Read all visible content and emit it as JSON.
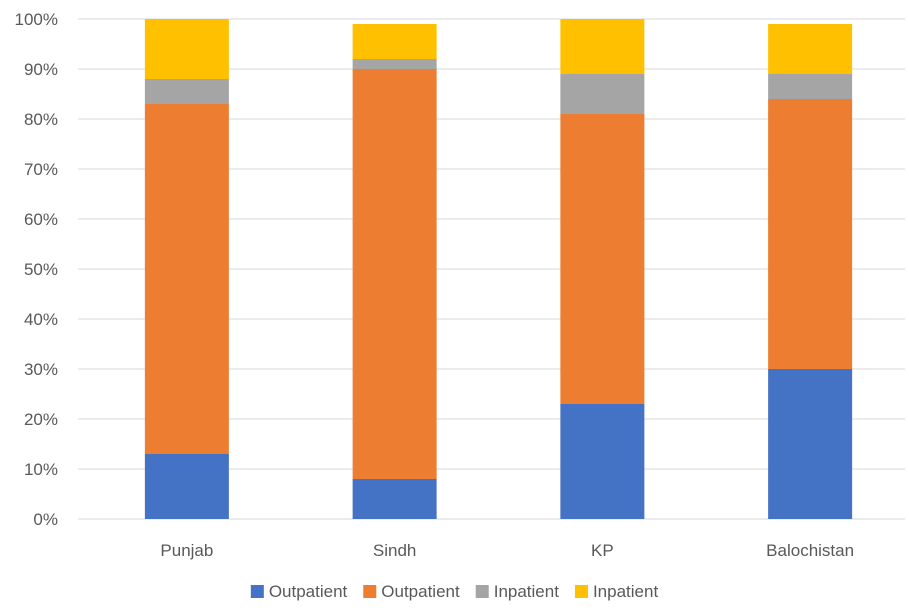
{
  "chart_data": {
    "type": "bar",
    "stacked": true,
    "categories": [
      "Punjab",
      "Sindh",
      "KP",
      "Balochistan"
    ],
    "series": [
      {
        "name": "Outpatient",
        "color": "#4472C4",
        "values": [
          13,
          8,
          23,
          30
        ]
      },
      {
        "name": "Outpatient",
        "color": "#ED7D31",
        "values": [
          70,
          82,
          58,
          54
        ]
      },
      {
        "name": "Inpatient",
        "color": "#A5A5A5",
        "values": [
          5,
          2,
          8,
          5
        ]
      },
      {
        "name": "Inpatient",
        "color": "#FFC000",
        "values": [
          12,
          7,
          11,
          10
        ]
      }
    ],
    "ylim": [
      0,
      100
    ],
    "yticks": [
      0,
      10,
      20,
      30,
      40,
      50,
      60,
      70,
      80,
      90,
      100
    ],
    "ytick_labels": [
      "0%",
      "10%",
      "20%",
      "30%",
      "40%",
      "50%",
      "60%",
      "70%",
      "80%",
      "90%",
      "100%"
    ],
    "grid": true,
    "legend_position": "bottom",
    "gridline_color": "#D9D9D9",
    "text_color": "#595959"
  }
}
